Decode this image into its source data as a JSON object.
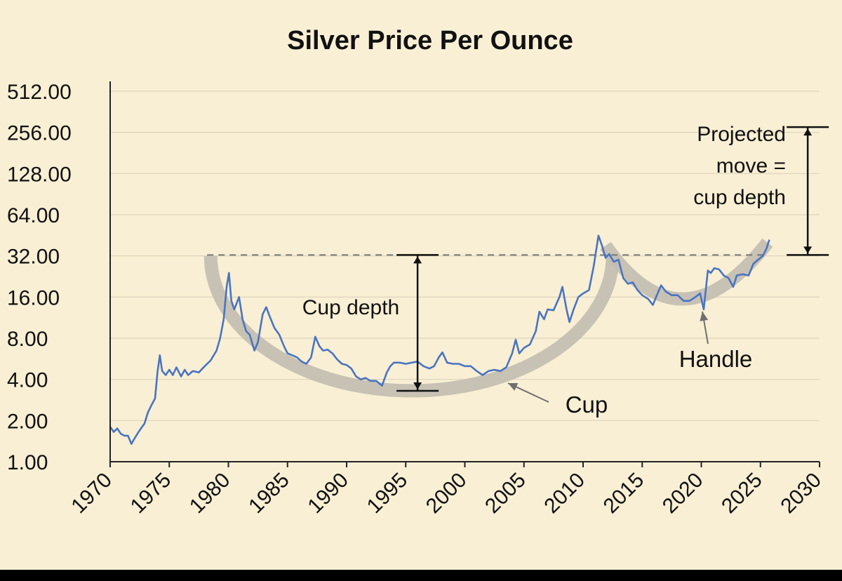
{
  "chart_data": {
    "type": "line",
    "title": "Silver Price Per Ounce",
    "xlabel": "",
    "ylabel": "",
    "y_scale": "log2",
    "xlim": [
      1970,
      2030
    ],
    "ylim": [
      1,
      512
    ],
    "x_ticks": [
      "1970",
      "1975",
      "1980",
      "1985",
      "1990",
      "1995",
      "2000",
      "2005",
      "2010",
      "2015",
      "2020",
      "2025",
      "2030"
    ],
    "y_ticks": [
      "1.00",
      "2.00",
      "4.00",
      "8.00",
      "16.00",
      "32.00",
      "64.00",
      "128.00",
      "256.00",
      "512.00"
    ],
    "grid": "horizontal",
    "legend": "none",
    "series": [
      {
        "color": "#4a74c0",
        "points": [
          [
            1970.0,
            1.8
          ],
          [
            1970.3,
            1.65
          ],
          [
            1970.6,
            1.75
          ],
          [
            1970.9,
            1.6
          ],
          [
            1971.2,
            1.55
          ],
          [
            1971.5,
            1.55
          ],
          [
            1971.8,
            1.35
          ],
          [
            1972.0,
            1.45
          ],
          [
            1972.3,
            1.6
          ],
          [
            1972.6,
            1.75
          ],
          [
            1972.9,
            1.9
          ],
          [
            1973.2,
            2.3
          ],
          [
            1973.5,
            2.6
          ],
          [
            1973.8,
            2.9
          ],
          [
            1974.0,
            4.5
          ],
          [
            1974.2,
            6.0
          ],
          [
            1974.4,
            4.6
          ],
          [
            1974.7,
            4.3
          ],
          [
            1975.0,
            4.7
          ],
          [
            1975.3,
            4.3
          ],
          [
            1975.6,
            4.9
          ],
          [
            1976.0,
            4.2
          ],
          [
            1976.3,
            4.7
          ],
          [
            1976.6,
            4.3
          ],
          [
            1977.0,
            4.6
          ],
          [
            1977.5,
            4.5
          ],
          [
            1978.0,
            5.0
          ],
          [
            1978.5,
            5.5
          ],
          [
            1979.0,
            6.5
          ],
          [
            1979.3,
            8.0
          ],
          [
            1979.6,
            11.0
          ],
          [
            1979.85,
            19.0
          ],
          [
            1980.05,
            24.0
          ],
          [
            1980.25,
            15.0
          ],
          [
            1980.5,
            13.0
          ],
          [
            1980.9,
            16.0
          ],
          [
            1981.2,
            11.0
          ],
          [
            1981.5,
            9.0
          ],
          [
            1981.8,
            8.5
          ],
          [
            1982.2,
            6.5
          ],
          [
            1982.5,
            7.5
          ],
          [
            1982.9,
            12.0
          ],
          [
            1983.2,
            13.5
          ],
          [
            1983.5,
            11.5
          ],
          [
            1983.9,
            9.5
          ],
          [
            1984.3,
            8.5
          ],
          [
            1984.7,
            7.0
          ],
          [
            1985.0,
            6.2
          ],
          [
            1985.4,
            6.0
          ],
          [
            1985.8,
            5.8
          ],
          [
            1986.2,
            5.4
          ],
          [
            1986.6,
            5.2
          ],
          [
            1987.0,
            5.8
          ],
          [
            1987.35,
            8.2
          ],
          [
            1987.7,
            7.0
          ],
          [
            1988.0,
            6.5
          ],
          [
            1988.4,
            6.6
          ],
          [
            1988.8,
            6.2
          ],
          [
            1989.2,
            5.6
          ],
          [
            1989.6,
            5.2
          ],
          [
            1990.0,
            5.1
          ],
          [
            1990.4,
            4.8
          ],
          [
            1990.8,
            4.2
          ],
          [
            1991.2,
            4.0
          ],
          [
            1991.6,
            4.1
          ],
          [
            1992.0,
            3.9
          ],
          [
            1992.5,
            3.9
          ],
          [
            1993.0,
            3.6
          ],
          [
            1993.4,
            4.5
          ],
          [
            1993.7,
            5.0
          ],
          [
            1994.0,
            5.3
          ],
          [
            1994.5,
            5.3
          ],
          [
            1995.0,
            5.2
          ],
          [
            1995.5,
            5.3
          ],
          [
            1996.0,
            5.4
          ],
          [
            1996.5,
            5.0
          ],
          [
            1997.0,
            4.8
          ],
          [
            1997.4,
            5.0
          ],
          [
            1997.8,
            5.8
          ],
          [
            1998.1,
            6.3
          ],
          [
            1998.5,
            5.3
          ],
          [
            1999.0,
            5.2
          ],
          [
            1999.5,
            5.2
          ],
          [
            2000.0,
            5.0
          ],
          [
            2000.5,
            5.0
          ],
          [
            2001.0,
            4.6
          ],
          [
            2001.5,
            4.3
          ],
          [
            2002.0,
            4.6
          ],
          [
            2002.5,
            4.7
          ],
          [
            2003.0,
            4.6
          ],
          [
            2003.5,
            4.9
          ],
          [
            2004.0,
            6.2
          ],
          [
            2004.3,
            7.8
          ],
          [
            2004.6,
            6.2
          ],
          [
            2005.0,
            6.8
          ],
          [
            2005.5,
            7.2
          ],
          [
            2006.0,
            9.0
          ],
          [
            2006.3,
            12.5
          ],
          [
            2006.7,
            11.0
          ],
          [
            2007.0,
            13.0
          ],
          [
            2007.5,
            12.8
          ],
          [
            2008.0,
            16.0
          ],
          [
            2008.25,
            19.0
          ],
          [
            2008.6,
            13.0
          ],
          [
            2008.85,
            10.5
          ],
          [
            2009.2,
            13.0
          ],
          [
            2009.6,
            16.0
          ],
          [
            2010.0,
            17.0
          ],
          [
            2010.5,
            18.0
          ],
          [
            2010.9,
            27.0
          ],
          [
            2011.3,
            45.0
          ],
          [
            2011.6,
            38.0
          ],
          [
            2011.9,
            31.0
          ],
          [
            2012.2,
            33.0
          ],
          [
            2012.6,
            29.0
          ],
          [
            2013.0,
            30.0
          ],
          [
            2013.4,
            22.0
          ],
          [
            2013.8,
            20.0
          ],
          [
            2014.2,
            20.5
          ],
          [
            2014.6,
            18.0
          ],
          [
            2015.0,
            16.5
          ],
          [
            2015.5,
            15.5
          ],
          [
            2015.9,
            14.0
          ],
          [
            2016.3,
            17.0
          ],
          [
            2016.6,
            19.5
          ],
          [
            2017.0,
            17.5
          ],
          [
            2017.5,
            16.5
          ],
          [
            2018.0,
            16.5
          ],
          [
            2018.5,
            15.0
          ],
          [
            2019.0,
            15.0
          ],
          [
            2019.5,
            16.0
          ],
          [
            2019.9,
            17.0
          ],
          [
            2020.2,
            13.0
          ],
          [
            2020.55,
            25.0
          ],
          [
            2020.8,
            24.0
          ],
          [
            2021.1,
            26.0
          ],
          [
            2021.5,
            25.5
          ],
          [
            2021.9,
            23.0
          ],
          [
            2022.3,
            22.0
          ],
          [
            2022.7,
            19.0
          ],
          [
            2023.0,
            23.0
          ],
          [
            2023.5,
            23.5
          ],
          [
            2024.0,
            23.0
          ],
          [
            2024.4,
            28.0
          ],
          [
            2024.8,
            30.0
          ],
          [
            2025.2,
            32.0
          ],
          [
            2025.5,
            36.0
          ],
          [
            2025.75,
            42.0
          ]
        ]
      }
    ],
    "patterns": {
      "cup_center": [
        1995.5,
        32
      ],
      "cup_radii": [
        17.0,
        3.3
      ],
      "handle_left": [
        2011.9,
        38
      ],
      "handle_bottom": [
        2018.5,
        15.5
      ],
      "handle_right": [
        2025.6,
        40
      ],
      "resistance_level": 32.5,
      "resistance_x": [
        1978.2,
        2025.6
      ],
      "cup_depth_line": {
        "x": 1996.0,
        "y": [
          32.5,
          3.3
        ]
      },
      "projected_move_line": {
        "x": 2029.0,
        "y": [
          32.5,
          280
        ]
      }
    },
    "annotations": {
      "cup_depth": "Cup depth",
      "cup": "Cup",
      "handle": "Handle",
      "projected_line1": "Projected",
      "projected_line2": "move =",
      "projected_line3": "cup depth"
    }
  },
  "colors": {
    "background": "#f9efd4",
    "line": "#4a74c0",
    "cup_band": "#c2bdb1",
    "grid": "#ddd3bb",
    "axis": "#222222",
    "dashed": "#777777"
  }
}
